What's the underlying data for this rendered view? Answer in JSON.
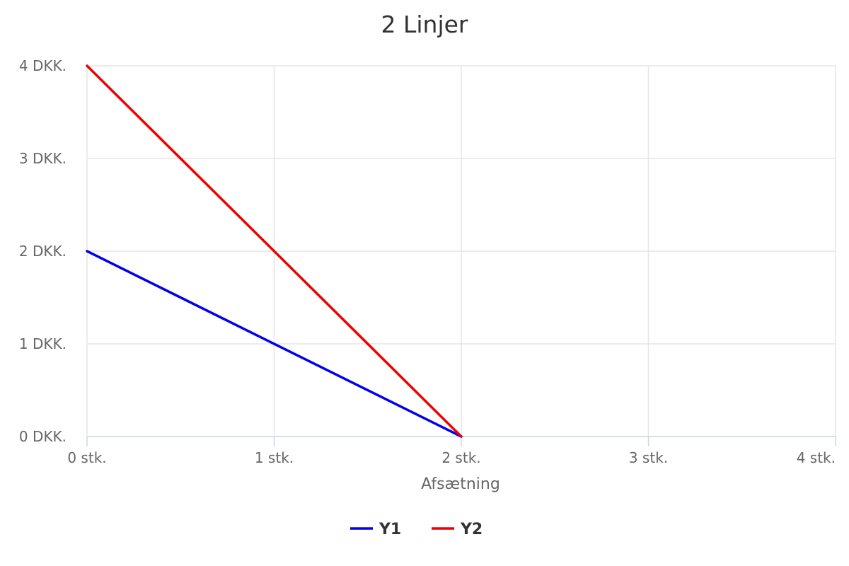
{
  "chart_data": {
    "type": "line",
    "title": "2 Linjer",
    "xlabel": "Afsætning",
    "ylabel": "",
    "xlim": [
      0,
      4
    ],
    "ylim": [
      0,
      4
    ],
    "x_ticks": [
      0,
      1,
      2,
      3,
      4
    ],
    "y_ticks": [
      0,
      1,
      2,
      3,
      4
    ],
    "x_tick_labels": [
      "0 stk.",
      "1 stk.",
      "2 stk.",
      "3 stk.",
      "4 stk."
    ],
    "y_tick_labels": [
      "0 DKK.",
      "1 DKK.",
      "2 DKK.",
      "3 DKK.",
      "4 DKK."
    ],
    "grid": true,
    "legend_position": "bottom-center",
    "series": [
      {
        "name": "Y1",
        "color": "#0000ee",
        "points": [
          [
            0,
            2
          ],
          [
            2,
            0
          ]
        ]
      },
      {
        "name": "Y2",
        "color": "#ee0000",
        "points": [
          [
            0,
            4
          ],
          [
            2,
            0
          ]
        ]
      }
    ]
  }
}
